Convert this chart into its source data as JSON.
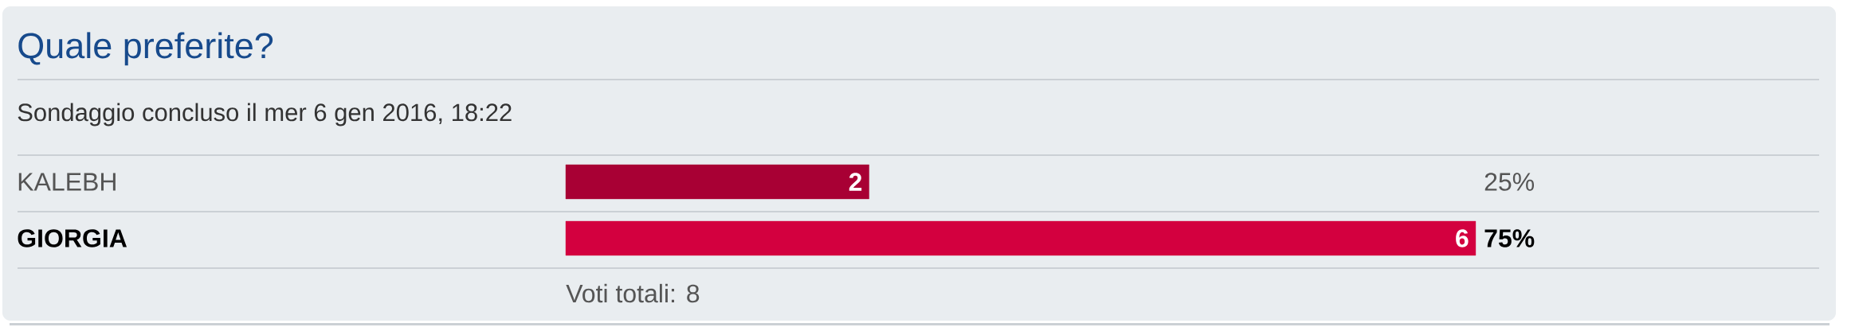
{
  "chart_data": {
    "type": "bar",
    "orientation": "horizontal",
    "title": "Quale preferite?",
    "subtitle": "Sondaggio concluso il mer 6 gen 2016, 18:22",
    "categories": [
      "KALEBH",
      "GIORGIA"
    ],
    "values": [
      2,
      6
    ],
    "colors": [
      "#a80034",
      "#d3003f"
    ],
    "data_labels": true,
    "xlim": [
      0,
      6
    ],
    "tick_labels": "y",
    "annotations": [
      "25%",
      "75%",
      "Voti totali: 8"
    ]
  }
}
